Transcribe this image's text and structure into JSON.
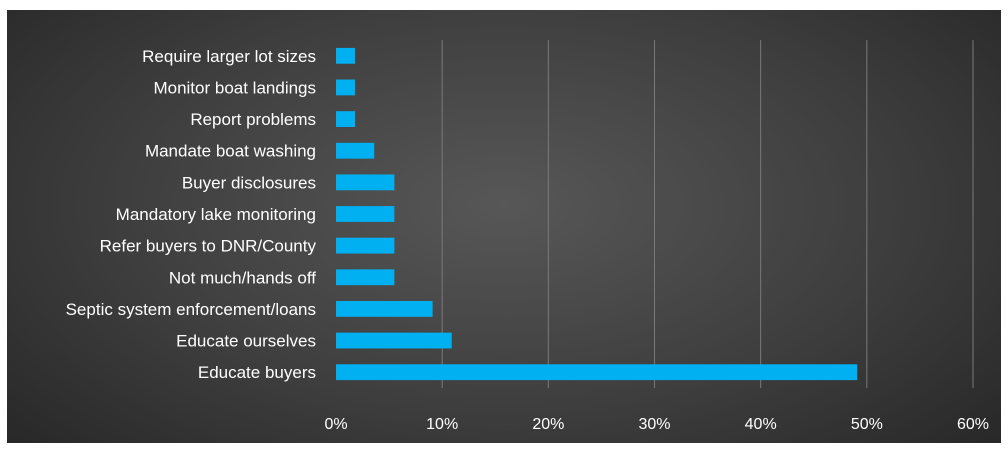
{
  "chart_data": {
    "type": "bar",
    "orientation": "horizontal",
    "categories": [
      "Require larger lot sizes",
      "Monitor boat landings",
      "Report problems",
      "Mandate boat washing",
      "Buyer disclosures",
      "Mandatory lake monitoring",
      "Refer buyers to DNR/County",
      "Not much/hands off",
      "Septic system enforcement/loans",
      "Educate ourselves",
      "Educate buyers"
    ],
    "values": [
      1.8,
      1.8,
      1.8,
      3.6,
      5.5,
      5.5,
      5.5,
      5.5,
      9.1,
      10.9,
      49.1
    ],
    "x_ticks": [
      "0%",
      "10%",
      "20%",
      "30%",
      "40%",
      "50%",
      "60%"
    ],
    "xlim": [
      0,
      60
    ],
    "title": "",
    "xlabel": "",
    "ylabel": "",
    "grid": "vertical",
    "legend": "none",
    "colors": {
      "bar": "#00b0f0",
      "background": "#404040",
      "text": "#ffffff",
      "grid": "#7a7a7a"
    }
  }
}
